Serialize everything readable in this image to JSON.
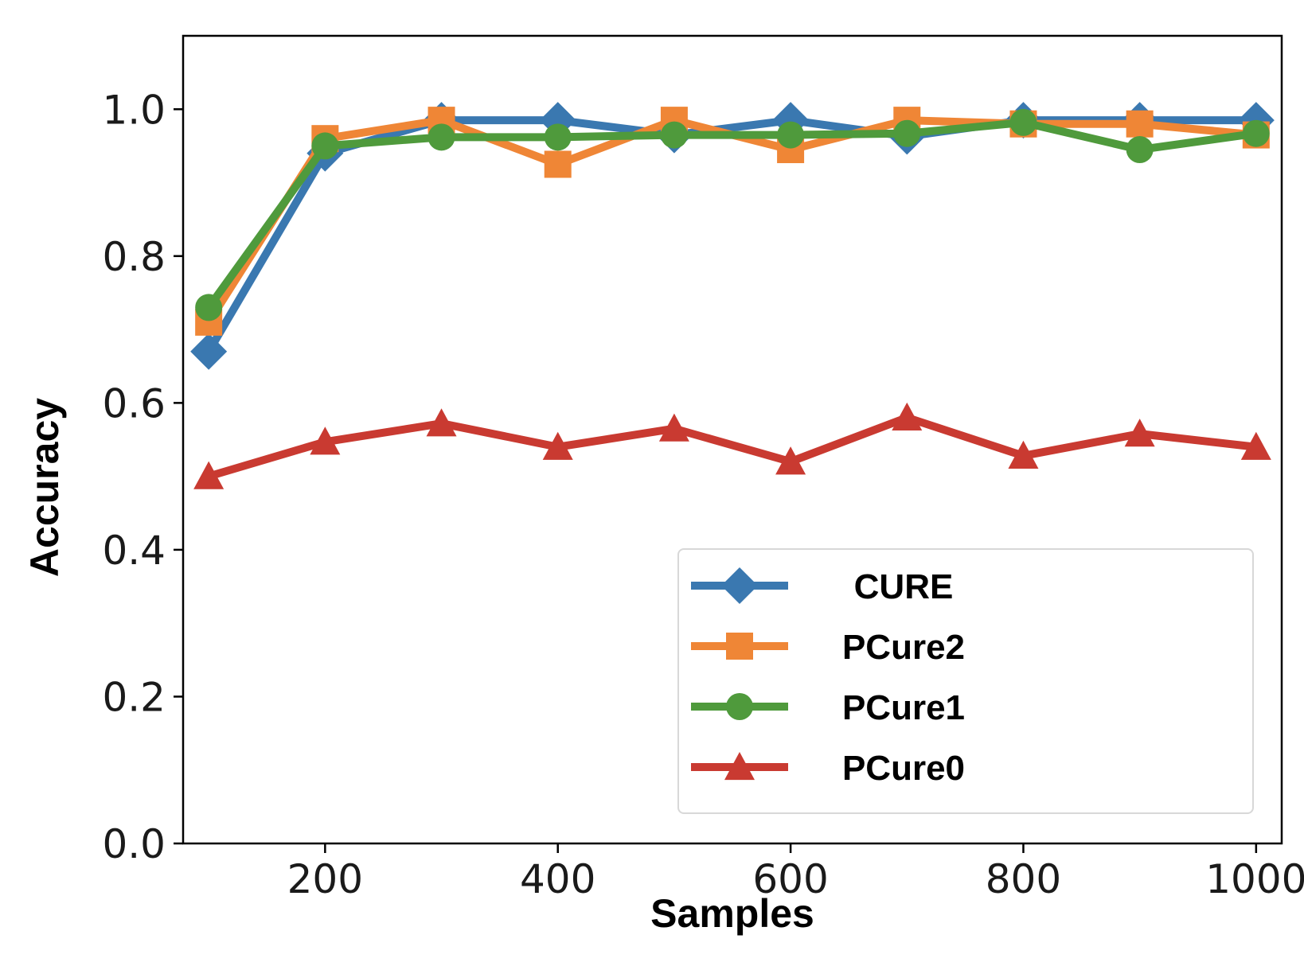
{
  "chart_data": {
    "type": "line",
    "title": "",
    "xlabel": "Samples",
    "ylabel": "Accuracy",
    "x": [
      100,
      200,
      300,
      400,
      500,
      600,
      700,
      800,
      900,
      1000
    ],
    "xlim": [
      78,
      1022
    ],
    "ylim": [
      0.0,
      1.1
    ],
    "xticks": [
      200,
      400,
      600,
      800,
      1000
    ],
    "xtick_labels": [
      "200",
      "400",
      "600",
      "800",
      "1000"
    ],
    "yticks": [
      0.0,
      0.2,
      0.4,
      0.6,
      0.8,
      1.0
    ],
    "ytick_labels": [
      "0.0",
      "0.2",
      "0.4",
      "0.6",
      "0.8",
      "1.0"
    ],
    "grid": false,
    "legend_position": "lower-right",
    "series": [
      {
        "name": "CURE",
        "color": "#3a78b0",
        "marker": "diamond",
        "values": [
          0.67,
          0.94,
          0.985,
          0.985,
          0.965,
          0.985,
          0.963,
          0.985,
          0.985,
          0.985
        ]
      },
      {
        "name": "PCure2",
        "color": "#ef8636",
        "marker": "square",
        "values": [
          0.71,
          0.96,
          0.985,
          0.925,
          0.985,
          0.945,
          0.985,
          0.98,
          0.98,
          0.965
        ]
      },
      {
        "name": "PCure1",
        "color": "#4f9a3c",
        "marker": "circle",
        "values": [
          0.73,
          0.95,
          0.962,
          0.962,
          0.965,
          0.965,
          0.967,
          0.982,
          0.945,
          0.967
        ]
      },
      {
        "name": "PCure0",
        "color": "#c93a31",
        "marker": "triangle",
        "values": [
          0.5,
          0.547,
          0.572,
          0.54,
          0.565,
          0.52,
          0.58,
          0.528,
          0.558,
          0.54
        ]
      }
    ]
  }
}
